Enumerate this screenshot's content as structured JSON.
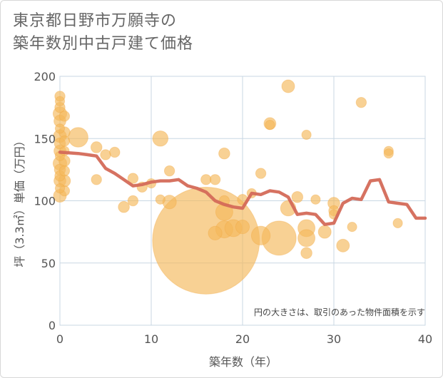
{
  "title_lines": [
    "東京都日野市万願寺の",
    "築年数別中古戸建て価格"
  ],
  "chart_data": {
    "type": "scatter",
    "xlabel": "築年数（年）",
    "ylabel": "坪（3.3㎡）単価（万円）",
    "xlim": [
      0,
      40
    ],
    "ylim": [
      0,
      200
    ],
    "xticks": [
      0,
      10,
      20,
      30,
      40
    ],
    "yticks": [
      0,
      50,
      100,
      150,
      200
    ],
    "grid": true,
    "note": "円の大きさは、取引のあった物件面積を示す",
    "colors": {
      "bubble": "#f5b95a",
      "line": "#d46a58",
      "grid": "#c9d7e3"
    },
    "points": [
      {
        "x": 0,
        "y": 184,
        "s": 1.2
      },
      {
        "x": 0,
        "y": 180,
        "s": 1.1
      },
      {
        "x": 0,
        "y": 175,
        "s": 1.2
      },
      {
        "x": 0,
        "y": 170,
        "s": 1.6
      },
      {
        "x": 0,
        "y": 164,
        "s": 1.4
      },
      {
        "x": 0,
        "y": 158,
        "s": 1.1
      },
      {
        "x": 0,
        "y": 152,
        "s": 1.5
      },
      {
        "x": 0,
        "y": 146,
        "s": 1.3
      },
      {
        "x": 0,
        "y": 140,
        "s": 1.4
      },
      {
        "x": 0,
        "y": 136,
        "s": 1.1
      },
      {
        "x": 0,
        "y": 130,
        "s": 1.6
      },
      {
        "x": 0,
        "y": 125,
        "s": 1.3
      },
      {
        "x": 0,
        "y": 120,
        "s": 1.2
      },
      {
        "x": 0,
        "y": 116,
        "s": 1.4
      },
      {
        "x": 0,
        "y": 110,
        "s": 1.1
      },
      {
        "x": 0,
        "y": 104,
        "s": 1.5
      },
      {
        "x": 0.5,
        "y": 168,
        "s": 1.2
      },
      {
        "x": 0.5,
        "y": 155,
        "s": 1.3
      },
      {
        "x": 0.5,
        "y": 148,
        "s": 1.2
      },
      {
        "x": 0.5,
        "y": 140,
        "s": 1.1
      },
      {
        "x": 0.5,
        "y": 132,
        "s": 1.3
      },
      {
        "x": 0.5,
        "y": 124,
        "s": 1.2
      },
      {
        "x": 0.5,
        "y": 116,
        "s": 1.4
      },
      {
        "x": 0.5,
        "y": 108,
        "s": 1.2
      },
      {
        "x": 2,
        "y": 151,
        "s": 2.3
      },
      {
        "x": 4,
        "y": 143,
        "s": 1.3
      },
      {
        "x": 5,
        "y": 137,
        "s": 1.2
      },
      {
        "x": 6,
        "y": 139,
        "s": 1.2
      },
      {
        "x": 4,
        "y": 117,
        "s": 1.2
      },
      {
        "x": 8,
        "y": 118,
        "s": 1.2
      },
      {
        "x": 9,
        "y": 111,
        "s": 1.2
      },
      {
        "x": 10,
        "y": 114,
        "s": 1.1
      },
      {
        "x": 7,
        "y": 95,
        "s": 1.3
      },
      {
        "x": 8,
        "y": 100,
        "s": 1.2
      },
      {
        "x": 11,
        "y": 150,
        "s": 1.8
      },
      {
        "x": 12,
        "y": 124,
        "s": 1.2
      },
      {
        "x": 11,
        "y": 101,
        "s": 1.1
      },
      {
        "x": 12,
        "y": 99,
        "s": 1.6
      },
      {
        "x": 16,
        "y": 68,
        "s": 12.5
      },
      {
        "x": 16,
        "y": 117,
        "s": 1.2
      },
      {
        "x": 17,
        "y": 117,
        "s": 1.2
      },
      {
        "x": 18,
        "y": 138,
        "s": 1.3
      },
      {
        "x": 18,
        "y": 100,
        "s": 1.2
      },
      {
        "x": 18,
        "y": 91,
        "s": 2.0
      },
      {
        "x": 17,
        "y": 74,
        "s": 1.6
      },
      {
        "x": 18,
        "y": 77,
        "s": 2.0
      },
      {
        "x": 19,
        "y": 78,
        "s": 2.0
      },
      {
        "x": 20,
        "y": 79,
        "s": 1.6
      },
      {
        "x": 20,
        "y": 101,
        "s": 1.2
      },
      {
        "x": 21,
        "y": 106,
        "s": 1.1
      },
      {
        "x": 22,
        "y": 122,
        "s": 1.2
      },
      {
        "x": 23,
        "y": 162,
        "s": 1.4
      },
      {
        "x": 23,
        "y": 161,
        "s": 1.1
      },
      {
        "x": 22,
        "y": 72,
        "s": 2.2
      },
      {
        "x": 24,
        "y": 70,
        "s": 4.0
      },
      {
        "x": 25,
        "y": 192,
        "s": 1.5
      },
      {
        "x": 25,
        "y": 94,
        "s": 1.8
      },
      {
        "x": 26,
        "y": 103,
        "s": 1.3
      },
      {
        "x": 27,
        "y": 153,
        "s": 1.1
      },
      {
        "x": 27,
        "y": 78,
        "s": 2.0
      },
      {
        "x": 27,
        "y": 70,
        "s": 2.0
      },
      {
        "x": 27,
        "y": 58,
        "s": 1.3
      },
      {
        "x": 28,
        "y": 101,
        "s": 1.1
      },
      {
        "x": 29,
        "y": 75,
        "s": 1.5
      },
      {
        "x": 30,
        "y": 98,
        "s": 1.4
      },
      {
        "x": 30,
        "y": 92,
        "s": 1.2
      },
      {
        "x": 30,
        "y": 89,
        "s": 1.1
      },
      {
        "x": 31,
        "y": 64,
        "s": 1.5
      },
      {
        "x": 32,
        "y": 79,
        "s": 1.1
      },
      {
        "x": 33,
        "y": 179,
        "s": 1.2
      },
      {
        "x": 36,
        "y": 140,
        "s": 1.1
      },
      {
        "x": 36,
        "y": 138,
        "s": 1.1
      },
      {
        "x": 37,
        "y": 82,
        "s": 1.1
      }
    ],
    "trend": [
      {
        "x": 0,
        "y": 139
      },
      {
        "x": 2,
        "y": 138
      },
      {
        "x": 3,
        "y": 137
      },
      {
        "x": 4,
        "y": 136
      },
      {
        "x": 5,
        "y": 126
      },
      {
        "x": 6,
        "y": 122
      },
      {
        "x": 7,
        "y": 117
      },
      {
        "x": 8,
        "y": 112
      },
      {
        "x": 9,
        "y": 113
      },
      {
        "x": 10,
        "y": 115
      },
      {
        "x": 11,
        "y": 116
      },
      {
        "x": 12,
        "y": 116
      },
      {
        "x": 13,
        "y": 117
      },
      {
        "x": 14,
        "y": 112
      },
      {
        "x": 15,
        "y": 110
      },
      {
        "x": 16,
        "y": 107
      },
      {
        "x": 17,
        "y": 100
      },
      {
        "x": 18,
        "y": 97
      },
      {
        "x": 19,
        "y": 95
      },
      {
        "x": 20,
        "y": 94
      },
      {
        "x": 21,
        "y": 106
      },
      {
        "x": 22,
        "y": 105
      },
      {
        "x": 23,
        "y": 108
      },
      {
        "x": 24,
        "y": 107
      },
      {
        "x": 25,
        "y": 103
      },
      {
        "x": 26,
        "y": 89
      },
      {
        "x": 27,
        "y": 90
      },
      {
        "x": 28,
        "y": 89
      },
      {
        "x": 29,
        "y": 81
      },
      {
        "x": 30,
        "y": 82
      },
      {
        "x": 31,
        "y": 98
      },
      {
        "x": 32,
        "y": 102
      },
      {
        "x": 33,
        "y": 101
      },
      {
        "x": 34,
        "y": 116
      },
      {
        "x": 35,
        "y": 117
      },
      {
        "x": 36,
        "y": 99
      },
      {
        "x": 37,
        "y": 98
      },
      {
        "x": 38,
        "y": 97
      },
      {
        "x": 39,
        "y": 86
      },
      {
        "x": 40,
        "y": 86
      }
    ]
  }
}
